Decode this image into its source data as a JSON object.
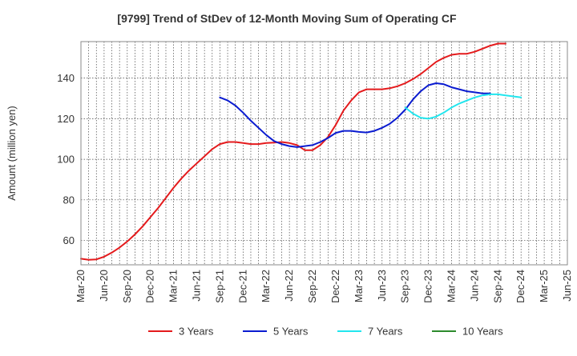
{
  "chart_data": {
    "type": "line",
    "title": "[9799]  Trend of StDev of 12-Month Moving Sum of Operating CF",
    "xlabel": "",
    "ylabel": "Amount (million yen)",
    "ylim": [
      48,
      158
    ],
    "yticks": [
      60,
      80,
      100,
      120,
      140
    ],
    "grid": true,
    "legend_position": "bottom",
    "x_tick_labels": [
      "Mar-20",
      "Jun-20",
      "Sep-20",
      "Dec-20",
      "Mar-21",
      "Jun-21",
      "Sep-21",
      "Dec-21",
      "Mar-22",
      "Jun-22",
      "Sep-22",
      "Dec-22",
      "Mar-23",
      "Jun-23",
      "Sep-23",
      "Dec-23",
      "Mar-24",
      "Jun-24",
      "Sep-24",
      "Dec-24",
      "Mar-25",
      "Jun-25"
    ],
    "series": [
      {
        "name": "3 Years",
        "color": "#e41a1c",
        "start_index": 0,
        "values": [
          51,
          50.5,
          50.7,
          52,
          54,
          56.5,
          59.5,
          63,
          67,
          71.5,
          76,
          81,
          86,
          90.5,
          94.5,
          98,
          101.5,
          105,
          107.5,
          108.5,
          108.5,
          108,
          107.5,
          107.5,
          108,
          108.2,
          108.5,
          108,
          107,
          104.5,
          104.5,
          107,
          111,
          117,
          124,
          129,
          133,
          134.5,
          134.5,
          134.5,
          135,
          136,
          137.5,
          139.5,
          142,
          145,
          148,
          150,
          151.5,
          152,
          152,
          153,
          154.5,
          156,
          157,
          157
        ]
      },
      {
        "name": "5 Years",
        "color": "#0a1bd0",
        "start_index": 18,
        "values": [
          130.5,
          129,
          126.5,
          123,
          119,
          115.5,
          112,
          109,
          107.5,
          106.5,
          106,
          106.5,
          107,
          108.5,
          110.5,
          113,
          114,
          114,
          113.5,
          113.2,
          114,
          115.5,
          117.5,
          120.5,
          124.5,
          129.5,
          133.5,
          136.5,
          137.5,
          137,
          135.5,
          134.5,
          133.5,
          133,
          132.5,
          132.5
        ]
      },
      {
        "name": "7 Years",
        "color": "#22e6ee",
        "start_index": 42,
        "values": [
          125.5,
          122.5,
          120.5,
          120,
          121,
          123,
          125.5,
          127.5,
          129,
          130.5,
          131.5,
          132,
          132,
          131.5,
          131,
          130.5
        ]
      },
      {
        "name": "10 Years",
        "color": "#2c8a2c",
        "start_index": 0,
        "values": []
      }
    ]
  }
}
